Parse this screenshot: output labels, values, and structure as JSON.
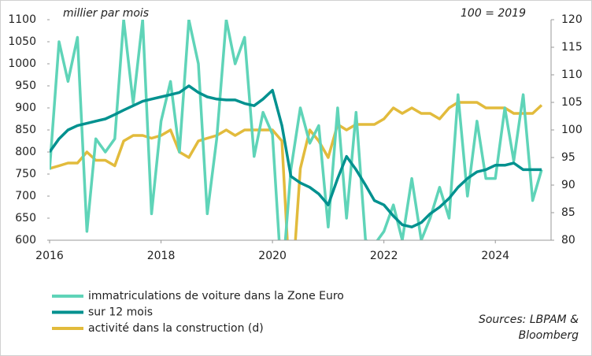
{
  "chart_data": {
    "type": "line",
    "left_axis_label": "millier par mois",
    "right_axis_label": "100 = 2019",
    "sources": [
      "Sources: LBPAM &",
      "Bloomberg"
    ],
    "x": [
      2016,
      2016.17,
      2016.33,
      2016.5,
      2016.67,
      2016.83,
      2017,
      2017.17,
      2017.33,
      2017.5,
      2017.67,
      2017.83,
      2018,
      2018.17,
      2018.33,
      2018.5,
      2018.67,
      2018.83,
      2019,
      2019.17,
      2019.33,
      2019.5,
      2019.67,
      2019.83,
      2020,
      2020.17,
      2020.33,
      2020.5,
      2020.67,
      2020.83,
      2021,
      2021.17,
      2021.33,
      2021.5,
      2021.67,
      2021.83,
      2022,
      2022.17,
      2022.33,
      2022.5,
      2022.67,
      2022.83,
      2023,
      2023.17,
      2023.33,
      2023.5,
      2023.67,
      2023.83,
      2024,
      2024.17,
      2024.33,
      2024.5,
      2024.67,
      2024.83
    ],
    "xlim": [
      2016,
      2025
    ],
    "xticks": [
      2016,
      2018,
      2020,
      2022,
      2024
    ],
    "ylim": [
      600,
      1100
    ],
    "yticks": [
      600,
      650,
      700,
      750,
      800,
      850,
      900,
      950,
      1000,
      1050,
      1100
    ],
    "y2lim": [
      80,
      120
    ],
    "y2ticks": [
      80,
      85,
      90,
      95,
      100,
      105,
      110,
      115,
      120
    ],
    "series": [
      {
        "name": "immatriculations de voiture dans la Zone Euro",
        "color": "#5fd4b8",
        "values": [
          760,
          1050,
          960,
          1060,
          620,
          830,
          800,
          830,
          1100,
          910,
          1100,
          660,
          870,
          960,
          800,
          1100,
          1000,
          660,
          830,
          1100,
          1000,
          1060,
          790,
          890,
          840,
          500,
          760,
          900,
          820,
          860,
          630,
          900,
          650,
          890,
          600,
          590,
          620,
          680,
          600,
          740,
          600,
          650,
          720,
          650,
          930,
          700,
          870,
          740,
          740,
          900,
          780,
          930,
          690,
          760
        ]
      },
      {
        "name": "sur 12 mois",
        "color": "#00918f",
        "values": [
          800,
          830,
          850,
          860,
          865,
          870,
          875,
          885,
          895,
          905,
          915,
          920,
          925,
          930,
          935,
          950,
          935,
          925,
          920,
          918,
          918,
          910,
          905,
          920,
          940,
          860,
          745,
          730,
          720,
          705,
          680,
          740,
          790,
          760,
          725,
          690,
          680,
          655,
          635,
          630,
          640,
          660,
          675,
          695,
          720,
          740,
          755,
          760,
          770,
          770,
          775,
          760,
          760,
          760
        ]
      },
      {
        "name": "activité dans la construction (d)",
        "color": "#e2bb3c",
        "axis": "y2",
        "values": [
          93,
          93.5,
          94,
          94,
          96,
          94.5,
          94.5,
          93.5,
          98,
          99,
          99,
          98.5,
          99,
          100,
          96,
          95,
          98,
          98.5,
          99,
          100,
          99,
          100,
          100,
          100,
          100,
          98,
          68,
          93,
          100,
          98,
          95,
          101,
          100,
          101,
          101,
          101,
          102,
          104,
          103,
          104,
          103,
          103,
          102,
          104,
          105,
          105,
          105,
          104,
          104,
          104,
          103,
          103,
          103,
          104.5
        ]
      }
    ]
  }
}
